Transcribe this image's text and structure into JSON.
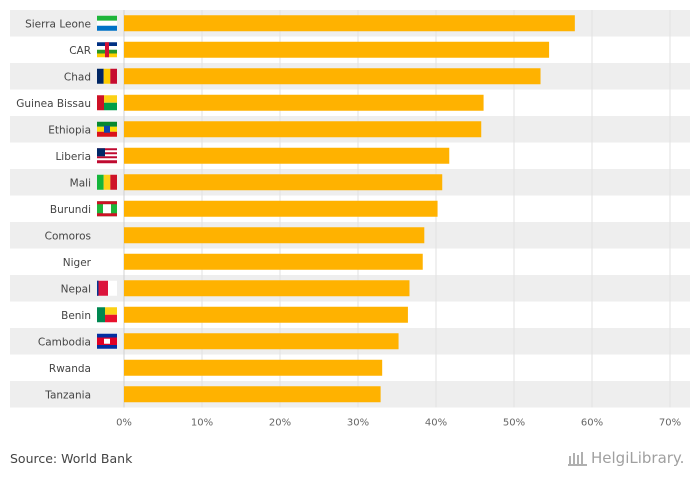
{
  "chart_data": {
    "type": "bar",
    "orientation": "horizontal",
    "title": "",
    "xlabel": "",
    "ylabel": "",
    "xlim": [
      0,
      70
    ],
    "x_ticks": [
      "0%",
      "10%",
      "20%",
      "30%",
      "40%",
      "50%",
      "60%",
      "70%"
    ],
    "categories": [
      "Sierra Leone",
      "CAR",
      "Chad",
      "Guinea Bissau",
      "Ethiopia",
      "Liberia",
      "Mali",
      "Burundi",
      "Comoros",
      "Niger",
      "Nepal",
      "Benin",
      "Cambodia",
      "Rwanda",
      "Tanzania"
    ],
    "values": [
      57.8,
      54.5,
      53.4,
      46.1,
      45.8,
      41.7,
      40.8,
      40.2,
      38.5,
      38.3,
      36.6,
      36.4,
      35.2,
      33.1,
      32.9
    ],
    "bar_color": "#ffb200",
    "band_color": "#eeeeee",
    "grid": true
  },
  "source": "Source: World Bank",
  "logo_text": "HelgiLibrary."
}
